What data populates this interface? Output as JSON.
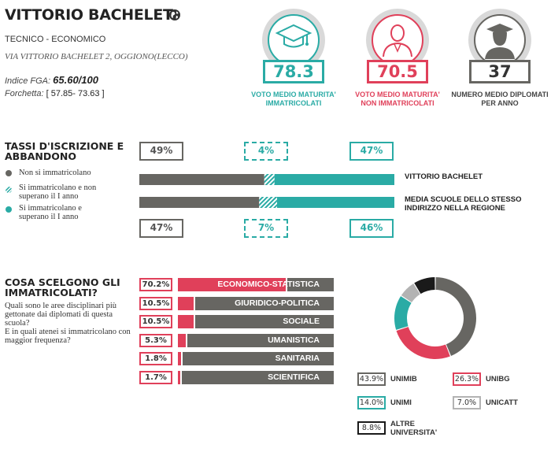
{
  "header": {
    "school_name": "VITTORIO BACHELET",
    "type": "TECNICO - ECONOMICO",
    "address": "VIA VITTORIO BACHELET 2, OGGIONO(LECCO)",
    "fga_label": "Indice FGA:",
    "fga_value": "65.60/100",
    "forchetta_label": "Forchetta:",
    "forchetta_value": "[ 57.85- 73.63 ]"
  },
  "kpis": [
    {
      "value": "78.3",
      "label": "VOTO MEDIO MATURITA' IMMATRICOLATI",
      "color": "#2aaba5",
      "icon": "graduate-cap-icon"
    },
    {
      "value": "70.5",
      "label": "VOTO MEDIO MATURITA' NON IMMATRICOLATI",
      "color": "#e0405a",
      "icon": "person-icon"
    },
    {
      "value": "37",
      "label": "NUMERO MEDIO DIPLOMATI PER ANNO",
      "color": "#676662",
      "icon": "graduate-person-icon"
    }
  ],
  "enrollment": {
    "title": "TASSI D'ISCRIZIONE E ABBANDONO",
    "legend": [
      {
        "text": "Non si immatricolano",
        "color": "#676662"
      },
      {
        "text": "Si immatricolano e non superano il I anno",
        "color": "#2aaba5"
      },
      {
        "text": "Si immatricolano e superano il I anno",
        "color": "#2aaba5"
      }
    ],
    "rows": [
      {
        "label": "VITTORIO BACHELET",
        "values": [
          49,
          4,
          47
        ],
        "display": [
          "49%",
          "4%",
          "47%"
        ]
      },
      {
        "label": "MEDIA SCUOLE DELLO STESSO INDIRIZZO NELLA REGIONE",
        "values": [
          47,
          7,
          46
        ],
        "display": [
          "47%",
          "7%",
          "46%"
        ]
      }
    ],
    "colors": {
      "not_enrolled": "#676662",
      "teal": "#2aaba5"
    }
  },
  "choices": {
    "title": "COSA SCELGONO GLI IMMATRICOLATI?",
    "question": "Quali sono le aree disciplinari più gettonate dai diplomati di questa scuola?",
    "question2": "E in quali atenei si immatricolano con maggior frequenza?",
    "items": [
      {
        "pct": "70.2%",
        "value": 70.2,
        "label": "ECONOMICO-STATISTICA"
      },
      {
        "pct": "10.5%",
        "value": 10.5,
        "label": "GIURIDICO-POLITICA"
      },
      {
        "pct": "10.5%",
        "value": 10.5,
        "label": "SOCIALE"
      },
      {
        "pct": "5.3%",
        "value": 5.3,
        "label": "UMANISTICA"
      },
      {
        "pct": "1.8%",
        "value": 1.8,
        "label": "SANITARIA"
      },
      {
        "pct": "1.7%",
        "value": 1.7,
        "label": "SCIENTIFICA"
      }
    ]
  },
  "universities": [
    {
      "pct": "43.9%",
      "value": 43.9,
      "name": "UNIMIB",
      "color": "#676662"
    },
    {
      "pct": "26.3%",
      "value": 26.3,
      "name": "UNIBG",
      "color": "#e0405a"
    },
    {
      "pct": "14.0%",
      "value": 14.0,
      "name": "UNIMI",
      "color": "#2aaba5"
    },
    {
      "pct": "7.0%",
      "value": 7.0,
      "name": "UNICATT",
      "color": "#b3b3b3"
    },
    {
      "pct": "8.8%",
      "value": 8.8,
      "name": "ALTRE UNIVERSITA'",
      "color": "#1a1a1a"
    }
  ]
}
